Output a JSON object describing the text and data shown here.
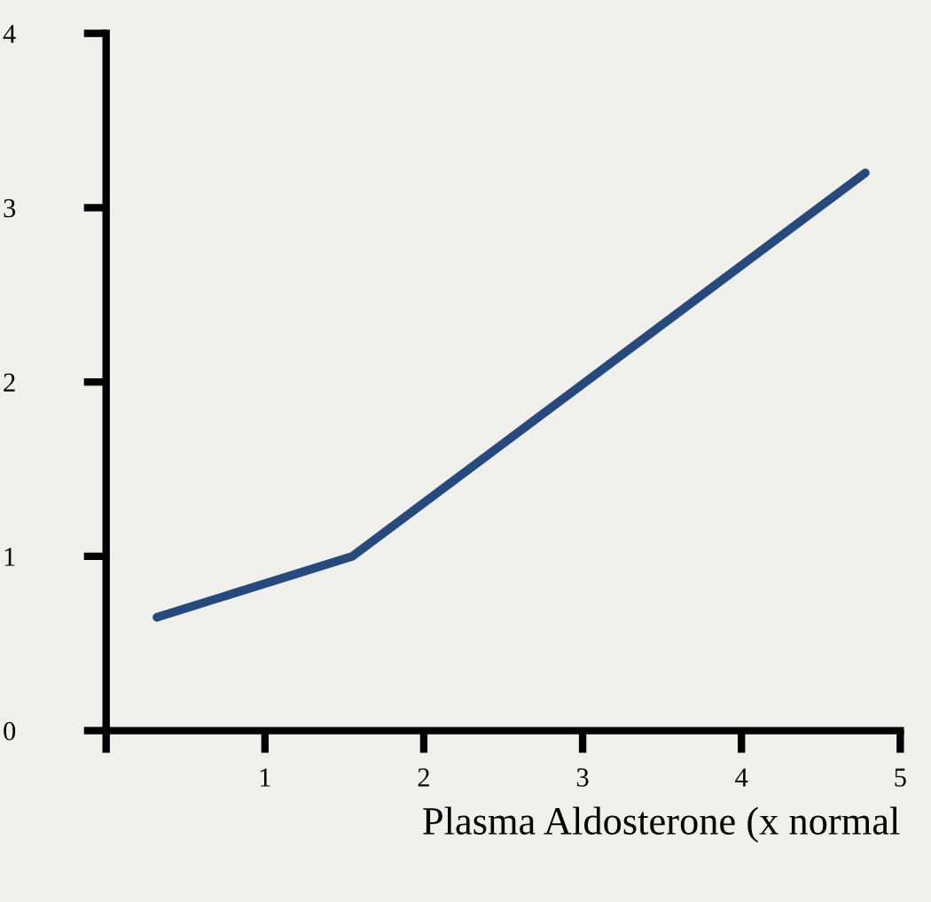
{
  "chart_data": {
    "type": "line",
    "xlabel": "Plasma Aldosterone (x normal",
    "x": [
      0.32,
      1.55,
      4.78
    ],
    "series": [
      {
        "color": "#264a7e",
        "values": [
          0.65,
          1.0,
          3.2
        ]
      }
    ],
    "xlim": [
      0,
      5
    ],
    "ylim": [
      0,
      4
    ],
    "xticks": [
      {
        "value": 0,
        "label": null
      },
      1,
      2,
      3,
      4,
      5
    ],
    "yticks": [
      0,
      1,
      2,
      3,
      4
    ],
    "grid": false,
    "legend": false,
    "marker": "none",
    "line_style": "solid"
  }
}
